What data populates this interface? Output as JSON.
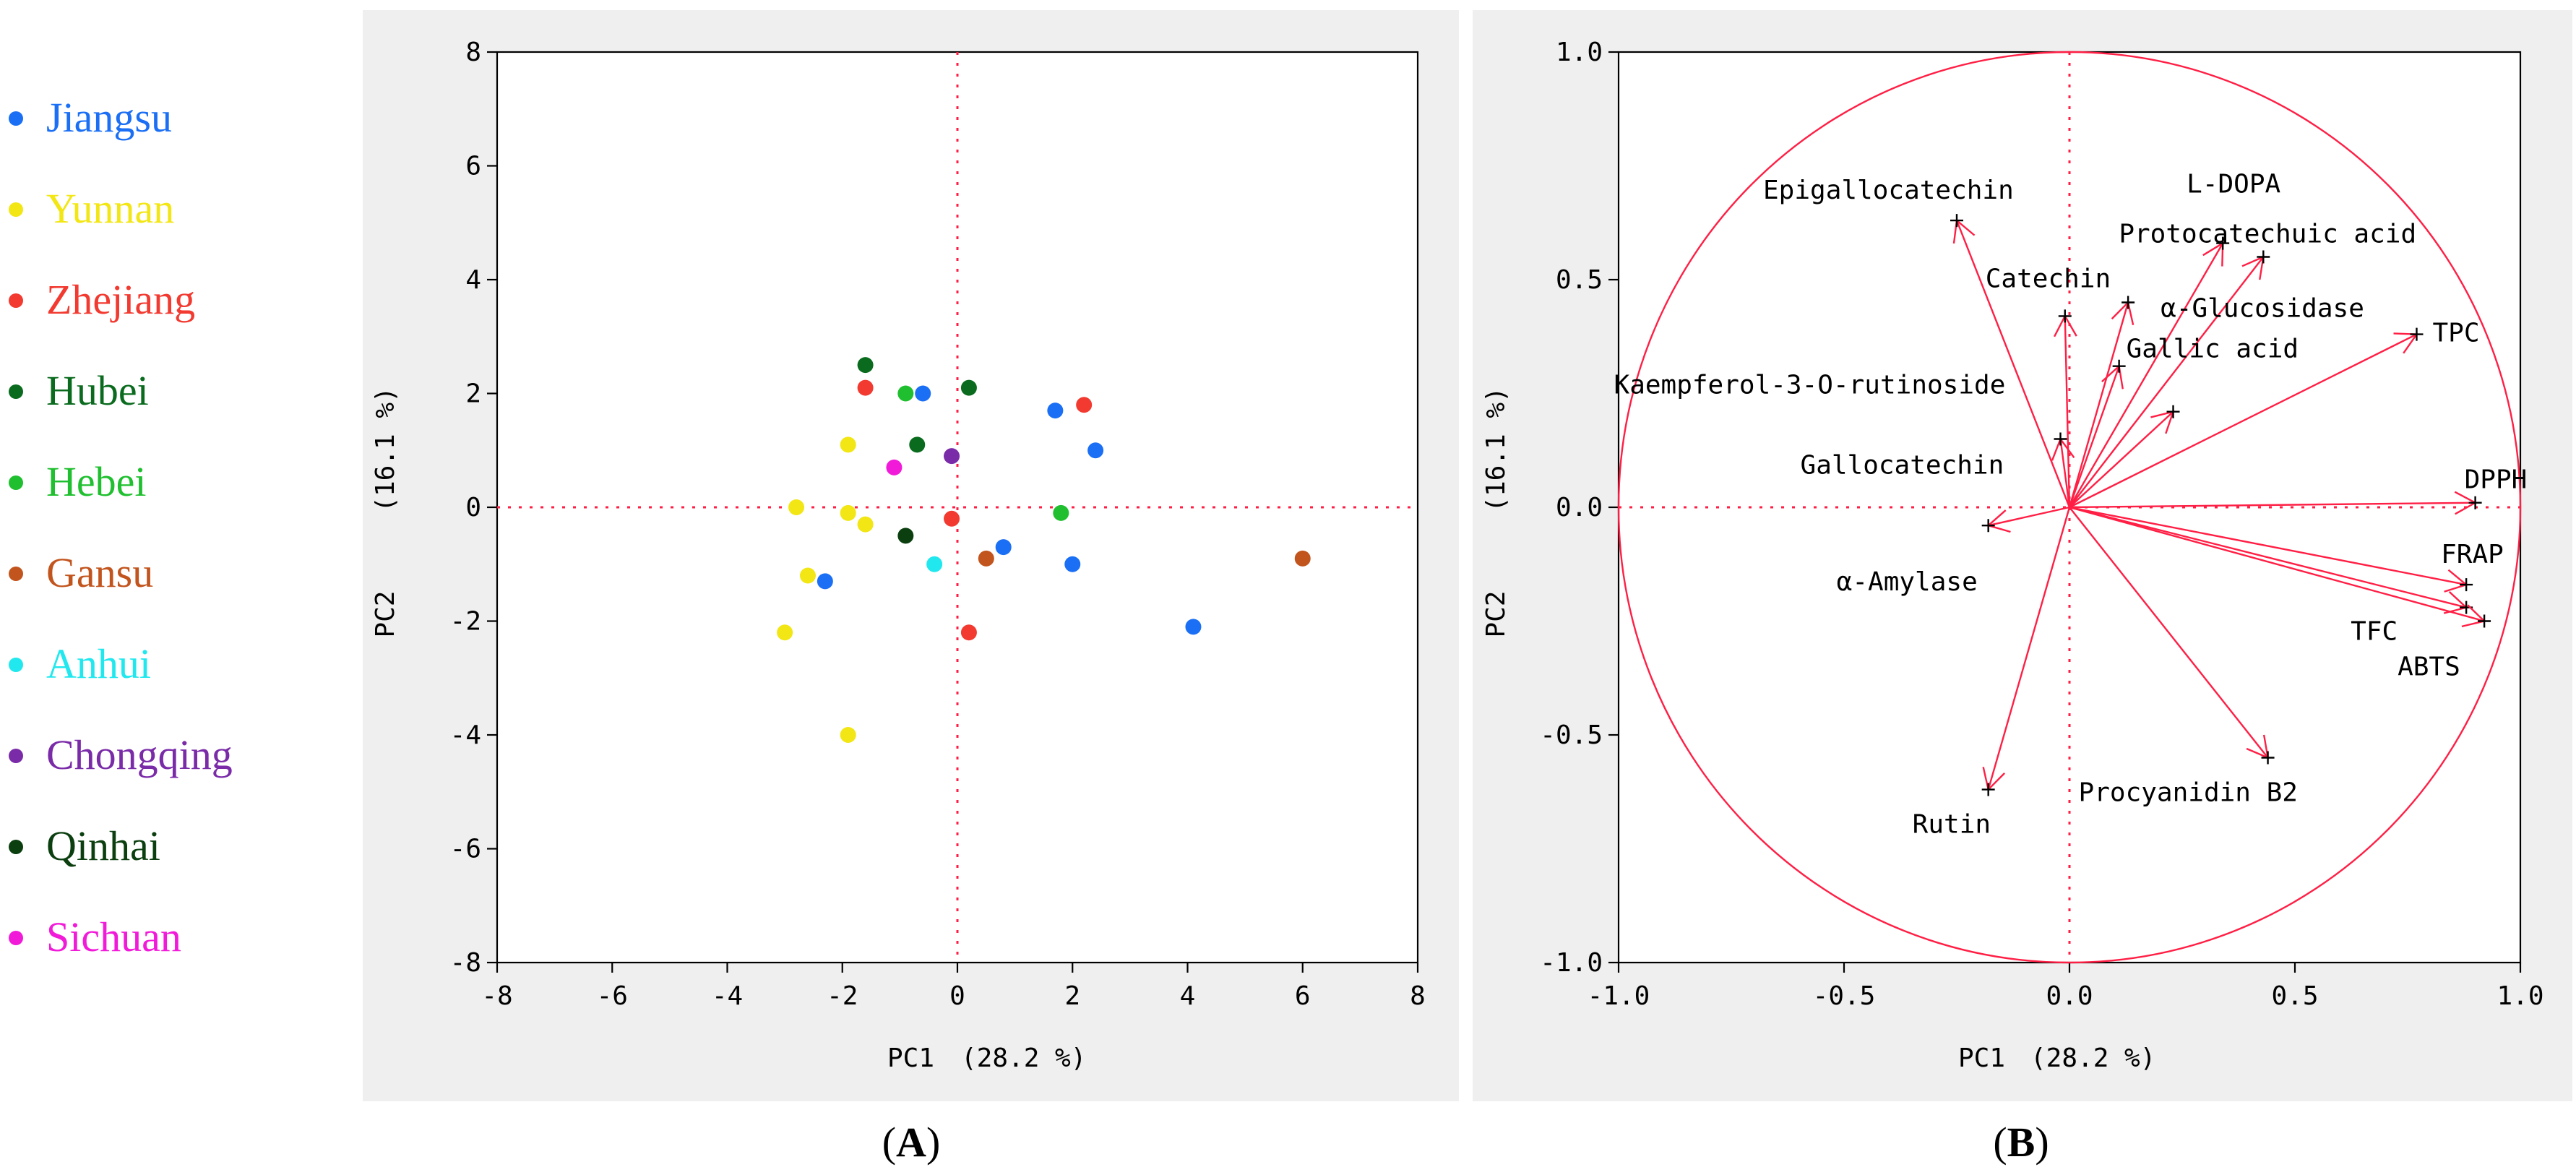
{
  "chart_data": [
    {
      "panel_label": "A",
      "type": "scatter",
      "xlabel": "PC1",
      "xpercent": "(28.2 %)",
      "ylabel": "PC2",
      "ypercent": "(16.1 %)",
      "xlim": [
        -8,
        8
      ],
      "ylim": [
        -8,
        8
      ],
      "xticks": [
        "-8",
        "-6",
        "-4",
        "-2",
        "0",
        "2",
        "4",
        "6",
        "8"
      ],
      "yticks": [
        "8",
        "6",
        "4",
        "2",
        "0",
        "-2",
        "-4",
        "-6",
        "-8"
      ],
      "legend": [
        {
          "name": "Jiangsu",
          "color": "#1a6ff5"
        },
        {
          "name": "Yunnan",
          "color": "#f2e614"
        },
        {
          "name": "Zhejiang",
          "color": "#f23a30"
        },
        {
          "name": "Hubei",
          "color": "#0a6b1e"
        },
        {
          "name": "Hebei",
          "color": "#1fbf2f"
        },
        {
          "name": "Gansu",
          "color": "#c2541d"
        },
        {
          "name": "Anhui",
          "color": "#21e8ee"
        },
        {
          "name": "Chongqing",
          "color": "#7a2ba8"
        },
        {
          "name": "Qinhai",
          "color": "#0b3f0f"
        },
        {
          "name": "Sichuan",
          "color": "#f21ad9"
        }
      ],
      "series": [
        {
          "name": "Jiangsu",
          "points": [
            [
              -0.6,
              2.0
            ],
            [
              1.7,
              1.7
            ],
            [
              2.4,
              1.0
            ],
            [
              0.8,
              -0.7
            ],
            [
              2.0,
              -1.0
            ],
            [
              -2.3,
              -1.3
            ],
            [
              4.1,
              -2.1
            ]
          ]
        },
        {
          "name": "Yunnan",
          "points": [
            [
              -1.9,
              1.1
            ],
            [
              -2.8,
              0.0
            ],
            [
              -1.9,
              -0.1
            ],
            [
              -1.6,
              -0.3
            ],
            [
              -2.6,
              -1.2
            ],
            [
              -3.0,
              -2.2
            ],
            [
              -1.9,
              -4.0
            ]
          ]
        },
        {
          "name": "Zhejiang",
          "points": [
            [
              -1.6,
              2.1
            ],
            [
              2.2,
              1.8
            ],
            [
              -0.1,
              -0.2
            ],
            [
              0.2,
              -2.2
            ]
          ]
        },
        {
          "name": "Hubei",
          "points": [
            [
              -1.6,
              2.5
            ],
            [
              0.2,
              2.1
            ],
            [
              -0.7,
              1.1
            ]
          ]
        },
        {
          "name": "Hebei",
          "points": [
            [
              -0.9,
              2.0
            ],
            [
              1.8,
              -0.1
            ]
          ]
        },
        {
          "name": "Gansu",
          "points": [
            [
              0.5,
              -0.9
            ],
            [
              6.0,
              -0.9
            ]
          ]
        },
        {
          "name": "Anhui",
          "points": [
            [
              -0.4,
              -1.0
            ]
          ]
        },
        {
          "name": "Chongqing",
          "points": [
            [
              -0.1,
              0.9
            ]
          ]
        },
        {
          "name": "Qinhai",
          "points": [
            [
              -0.9,
              -0.5
            ]
          ]
        },
        {
          "name": "Sichuan",
          "points": [
            [
              -1.1,
              0.7
            ]
          ]
        }
      ]
    },
    {
      "panel_label": "B",
      "type": "scatter",
      "subtype": "loading-plot",
      "xlabel": "PC1",
      "xpercent": "(28.2 %)",
      "ylabel": "PC2",
      "ypercent": "(16.1 %)",
      "xlim": [
        -1.0,
        1.0
      ],
      "ylim": [
        -1.0,
        1.0
      ],
      "xticks": [
        "-1.0",
        "-0.5",
        "0.0",
        "0.5",
        "1.0"
      ],
      "yticks": [
        "1.0",
        "0.5",
        "0.0",
        "-0.5",
        "-1.0"
      ],
      "correlation_circle_radius": 1.0,
      "vectors": [
        {
          "name": "Epigallocatechin",
          "x": -0.25,
          "y": 0.63
        },
        {
          "name": "L-DOPA",
          "x": 0.34,
          "y": 0.58
        },
        {
          "name": "Protocatechuic acid",
          "x": 0.43,
          "y": 0.55
        },
        {
          "name": "Catechin",
          "x": -0.01,
          "y": 0.42
        },
        {
          "name": "α-Glucosidase",
          "x": 0.13,
          "y": 0.45
        },
        {
          "name": "TPC",
          "x": 0.77,
          "y": 0.38
        },
        {
          "name": "Gallic acid",
          "x": 0.11,
          "y": 0.31
        },
        {
          "name": "Kaempferol-3-O-rutinoside",
          "x": 0.23,
          "y": 0.21
        },
        {
          "name": "Gallocatechin",
          "x": -0.02,
          "y": 0.15
        },
        {
          "name": "DPPH",
          "x": 0.9,
          "y": 0.01
        },
        {
          "name": "α-Amylase",
          "x": -0.18,
          "y": -0.04
        },
        {
          "name": "FRAP",
          "x": 0.88,
          "y": -0.17
        },
        {
          "name": "TFC",
          "x": 0.88,
          "y": -0.22
        },
        {
          "name": "ABTS",
          "x": 0.92,
          "y": -0.25
        },
        {
          "name": "Procyanidin B2",
          "x": 0.44,
          "y": -0.55
        },
        {
          "name": "Rutin",
          "x": -0.18,
          "y": -0.62
        }
      ]
    }
  ]
}
